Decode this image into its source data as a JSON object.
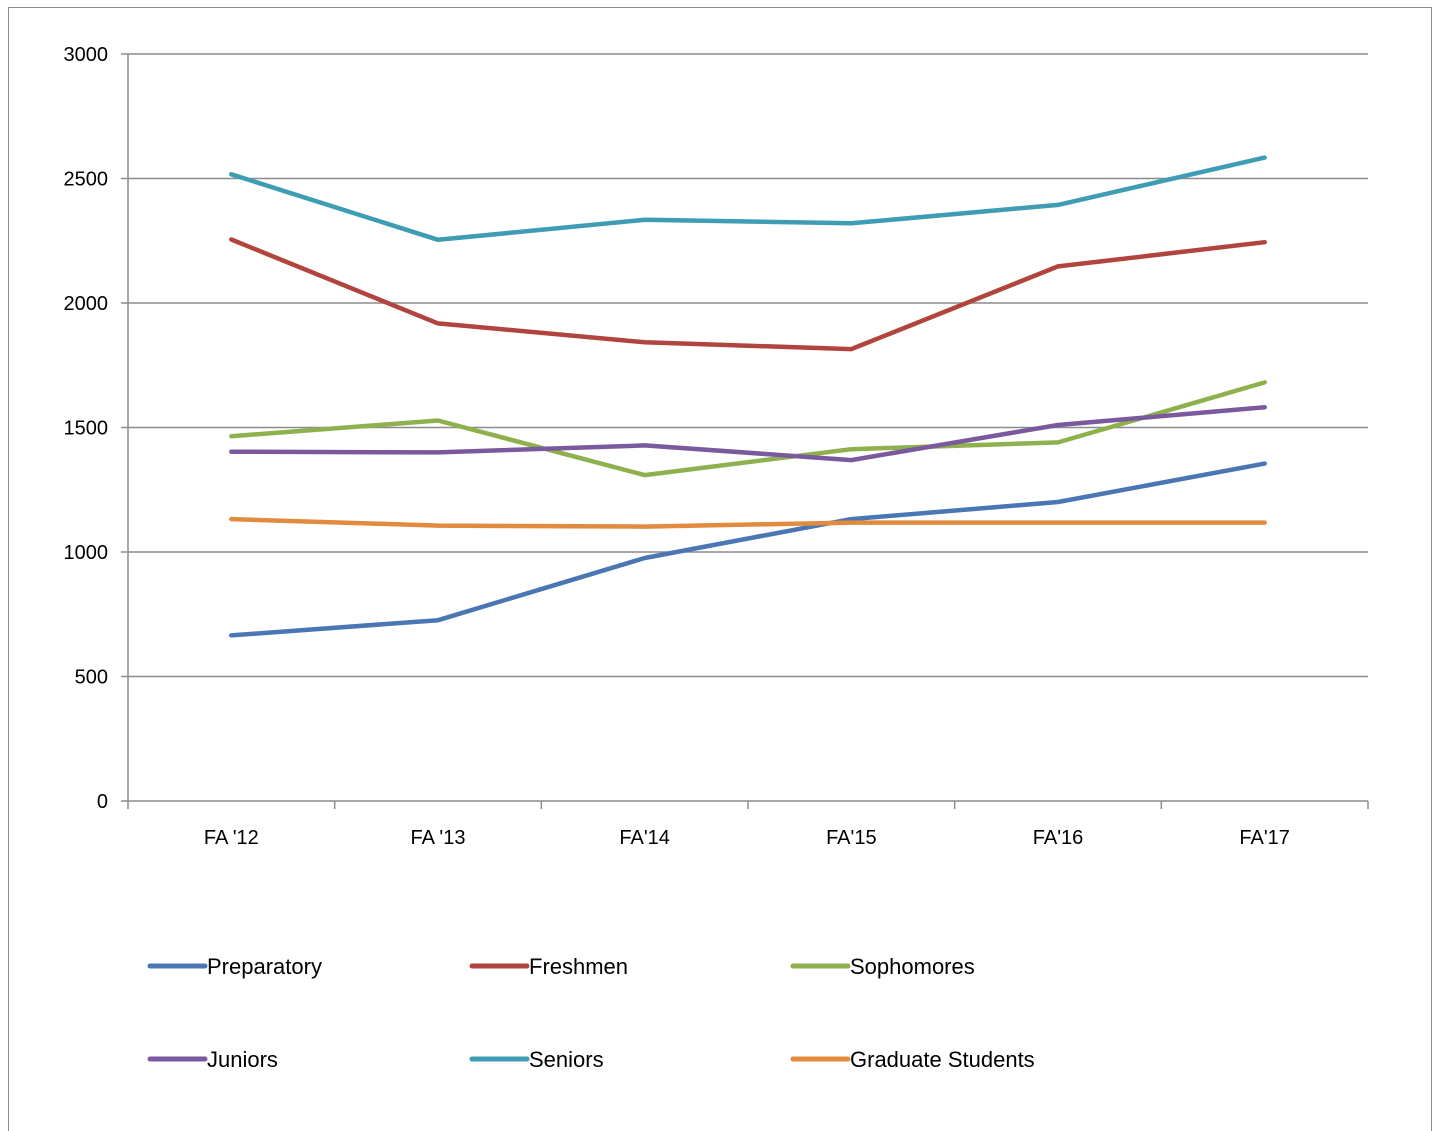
{
  "chart_data": {
    "type": "line",
    "title": "",
    "xlabel": "",
    "ylabel": "",
    "categories": [
      "FA '12",
      "FA '13",
      "FA'14",
      "FA'15",
      "FA'16",
      "FA'17"
    ],
    "ylim": [
      0,
      3000
    ],
    "yticks": [
      0,
      500,
      1000,
      1500,
      2000,
      2500,
      3000
    ],
    "grid": true,
    "legend_position": "bottom",
    "series": [
      {
        "name": "Preparatory",
        "color": "#4a77b4",
        "values": [
          665,
          726,
          976,
          1132,
          1201,
          1355
        ]
      },
      {
        "name": "Freshmen",
        "color": "#b2443f",
        "values": [
          2255,
          1918,
          1842,
          1815,
          2147,
          2244
        ]
      },
      {
        "name": "Sophomores",
        "color": "#8eb14e",
        "values": [
          1465,
          1528,
          1309,
          1413,
          1440,
          1681
        ]
      },
      {
        "name": "Juniors",
        "color": "#7a5a9c",
        "values": [
          1403,
          1400,
          1428,
          1369,
          1510,
          1581
        ]
      },
      {
        "name": "Seniors",
        "color": "#3e9db3",
        "values": [
          2517,
          2254,
          2334,
          2320,
          2394,
          2584
        ]
      },
      {
        "name": "Graduate Students",
        "color": "#e28a3e",
        "values": [
          1132,
          1106,
          1102,
          1118,
          1118,
          1118
        ]
      }
    ]
  }
}
